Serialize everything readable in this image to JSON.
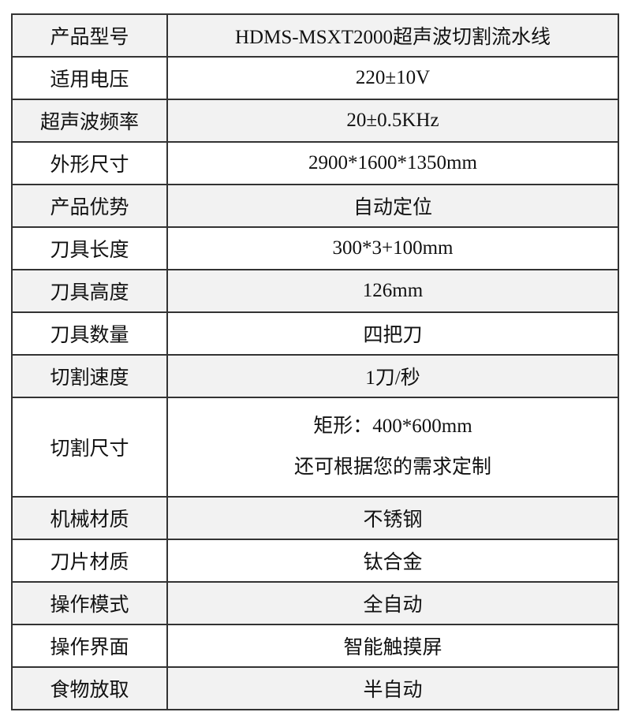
{
  "table": {
    "rows": [
      [
        "产品型号",
        "HDMS-MSXT2000超声波切割流水线"
      ],
      [
        "适用电压",
        "220±10V"
      ],
      [
        "超声波频率",
        "20±0.5KHz"
      ],
      [
        "外形尺寸",
        "2900*1600*1350mm"
      ],
      [
        "产品优势",
        "自动定位"
      ],
      [
        "刀具长度",
        "300*3+100mm"
      ],
      [
        "刀具高度",
        "126mm"
      ],
      [
        "刀具数量",
        "四把刀"
      ],
      [
        "切割速度",
        "1刀/秒"
      ],
      [
        "切割尺寸",
        [
          "矩形：400*600mm",
          "还可根据您的需求定制"
        ]
      ],
      [
        "机械材质",
        "不锈钢"
      ],
      [
        "刀片材质",
        "钛合金"
      ],
      [
        "操作模式",
        "全自动"
      ],
      [
        "操作界面",
        "智能触摸屏"
      ],
      [
        "食物放取",
        "半自动"
      ]
    ]
  }
}
